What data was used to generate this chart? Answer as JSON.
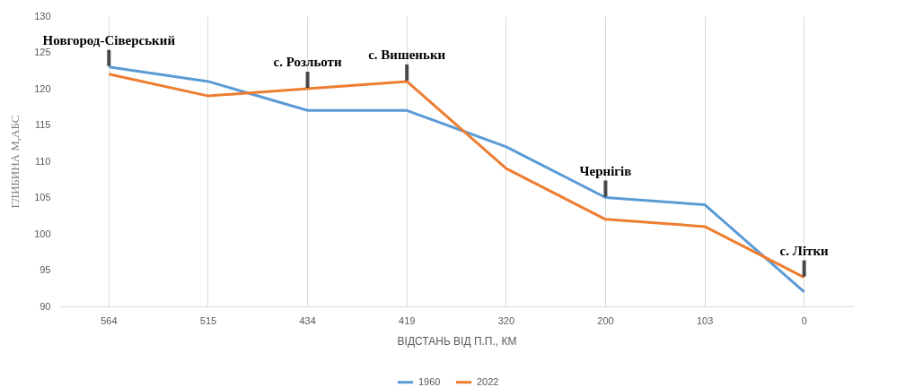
{
  "chart_data": {
    "type": "line",
    "xlabel": "ВІДСТАНЬ ВІД П.П., КМ",
    "ylabel": "ГЛИБИНА М,АБС",
    "categories": [
      "564",
      "515",
      "434",
      "419",
      "320",
      "200",
      "103",
      "0"
    ],
    "series": [
      {
        "name": "1960",
        "color": "#5b9bd5",
        "values": [
          123,
          121,
          117,
          117,
          112,
          105,
          104,
          92
        ]
      },
      {
        "name": "2022",
        "color": "#ed7d31",
        "values": [
          122,
          119,
          120,
          121,
          109,
          102,
          101,
          94
        ]
      }
    ],
    "ylim": [
      90,
      130
    ],
    "yticks": [
      90,
      95,
      100,
      105,
      110,
      115,
      120,
      125,
      130
    ],
    "grid": "x",
    "legend": "bottom",
    "line_style": "solid",
    "annotations": [
      {
        "text": "Новгород-Сіверський",
        "x": "564",
        "y": 123
      },
      {
        "text": "с. Розльоти",
        "x": "434",
        "y": 120
      },
      {
        "text": "с. Вишеньки",
        "x": "419",
        "y": 121
      },
      {
        "text": "Чернігів",
        "x": "200",
        "y": 105
      },
      {
        "text": "с. Літки",
        "x": "0",
        "y": 94
      }
    ]
  }
}
